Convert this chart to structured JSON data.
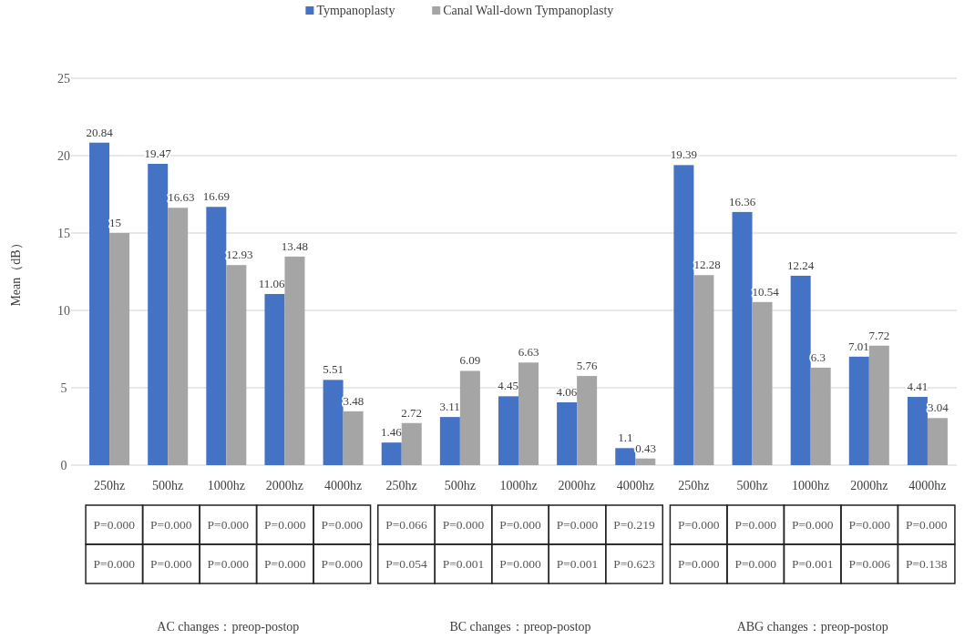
{
  "chart_data": {
    "type": "bar",
    "ylabel": "Mean（dB）",
    "categories": [
      "250hz",
      "500hz",
      "1000hz",
      "2000hz",
      "4000hz",
      "250hz",
      "500hz",
      "1000hz",
      "2000hz",
      "4000hz",
      "250hz",
      "500hz",
      "1000hz",
      "2000hz",
      "4000hz"
    ],
    "series": [
      {
        "name": "Tympanoplasty",
        "color": "#4472c4",
        "values": [
          20.84,
          19.47,
          16.69,
          11.06,
          5.51,
          1.46,
          3.11,
          4.45,
          4.06,
          1.1,
          19.39,
          16.36,
          12.24,
          7.01,
          4.41
        ]
      },
      {
        "name": "Canal Wall-down Tympanoplasty",
        "color": "#a5a5a5",
        "values": [
          15,
          16.63,
          12.93,
          13.48,
          3.48,
          2.72,
          6.09,
          6.63,
          5.76,
          0.43,
          12.28,
          10.54,
          6.3,
          7.72,
          3.04
        ]
      }
    ],
    "ylim": [
      0,
      25
    ],
    "yticks": [
      0,
      5,
      10,
      15,
      20,
      25
    ],
    "grid": "y",
    "legend": "top",
    "data_labels": true,
    "annotations": [
      "AC changes：preop-postop",
      "BC changes：preop-postop",
      "ABG changes：preop-postop",
      "P=0.000",
      "P=0.000",
      "P=0.000",
      "P=0.000",
      "P=0.000",
      "P=0.066",
      "P=0.000",
      "P=0.000",
      "P=0.000",
      "P=0.219",
      "P=0.000",
      "P=0.000",
      "P=0.000",
      "P=0.000",
      "P=0.000",
      "P=0.000",
      "P=0.000",
      "P=0.000",
      "P=0.000",
      "P=0.000",
      "P=0.054",
      "P=0.001",
      "P=0.000",
      "P=0.001",
      "P=0.623",
      "P=0.000",
      "P=0.000",
      "P=0.001",
      "P=0.006",
      "P=0.138"
    ]
  }
}
